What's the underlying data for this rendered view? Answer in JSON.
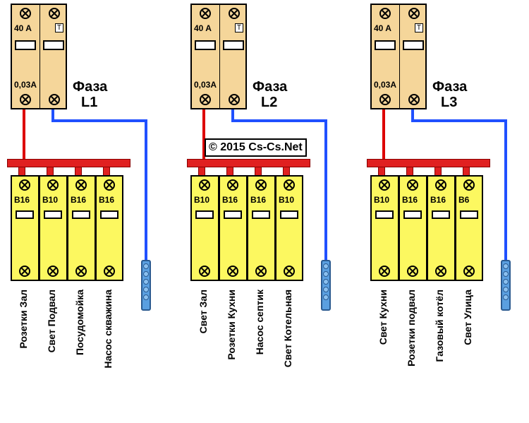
{
  "diagram": {
    "copyright": "© 2015 Cs-Cs.Net",
    "rcd_body_color": "#f5d69a",
    "breaker_body_color": "#fcf860",
    "busbar_color": "#e02020",
    "wire_live_color": "#d00000",
    "wire_neutral_color": "#2050ff",
    "neutral_bar_color": "#5a9fe0",
    "phases": [
      {
        "label_top": "Фаза",
        "label_bot": "L1",
        "rcd": {
          "rating": "40 A",
          "sensitivity": "0,03A"
        },
        "breakers": [
          {
            "rating": "B16",
            "label": "Розетки Зал"
          },
          {
            "rating": "B10",
            "label": "Свет Подвал"
          },
          {
            "rating": "B16",
            "label": "Посудомойка"
          },
          {
            "rating": "B16",
            "label": "Насос скважина"
          }
        ]
      },
      {
        "label_top": "Фаза",
        "label_bot": "L2",
        "rcd": {
          "rating": "40 A",
          "sensitivity": "0,03A"
        },
        "breakers": [
          {
            "rating": "B10",
            "label": "Свет Зал"
          },
          {
            "rating": "B16",
            "label": "Розетки Кухни"
          },
          {
            "rating": "B16",
            "label": "Насос септик"
          },
          {
            "rating": "B10",
            "label": "Свет Котельная"
          }
        ]
      },
      {
        "label_top": "Фаза",
        "label_bot": "L3",
        "rcd": {
          "rating": "40 A",
          "sensitivity": "0,03A"
        },
        "breakers": [
          {
            "rating": "B10",
            "label": "Свет Кухни"
          },
          {
            "rating": "B16",
            "label": "Розетки подвал"
          },
          {
            "rating": "B16",
            "label": "Газовый котёл"
          },
          {
            "rating": "B6",
            "label": "Свет Улица"
          }
        ]
      }
    ]
  }
}
